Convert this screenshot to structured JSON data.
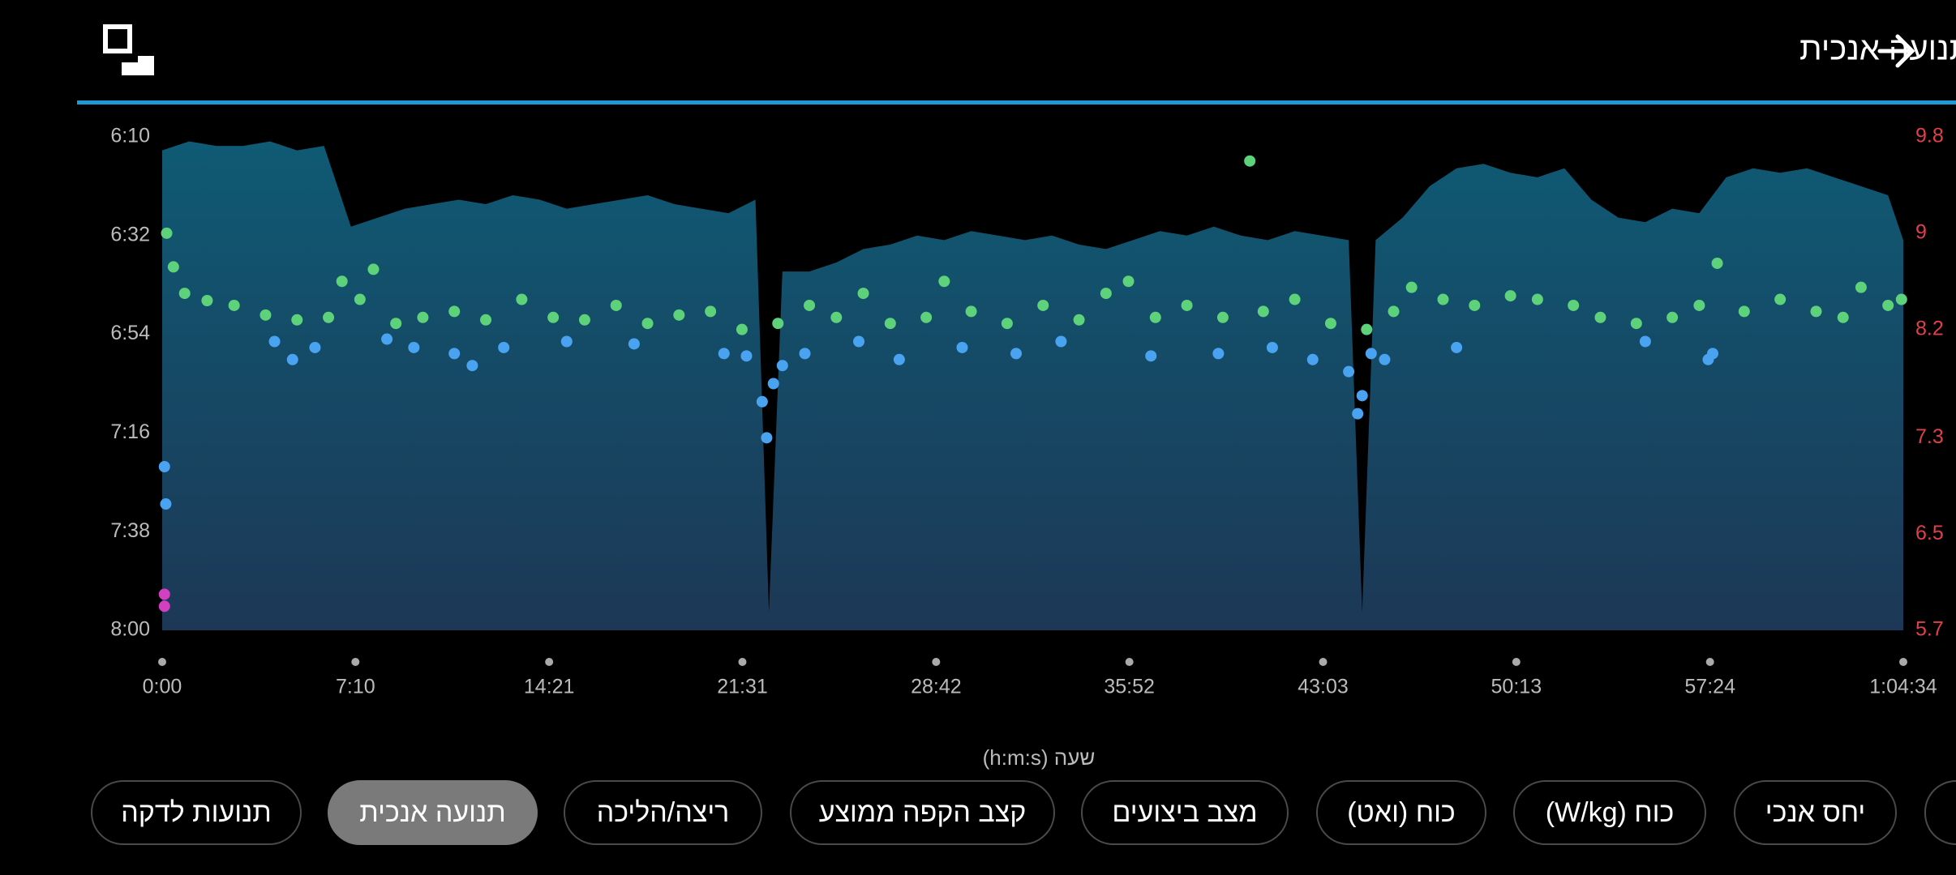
{
  "header": {
    "title": "קצב & תנועה אנכית"
  },
  "chart_data": {
    "type": "area",
    "xlabel": "שעה (h:m:s)",
    "xlim": [
      0,
      3874
    ],
    "xticks": [
      {
        "value": 0,
        "label": "0:00"
      },
      {
        "value": 430,
        "label": "7:10"
      },
      {
        "value": 861,
        "label": "14:21"
      },
      {
        "value": 1291,
        "label": "21:31"
      },
      {
        "value": 1722,
        "label": "28:42"
      },
      {
        "value": 2152,
        "label": "35:52"
      },
      {
        "value": 2583,
        "label": "43:03"
      },
      {
        "value": 3013,
        "label": "50:13"
      },
      {
        "value": 3444,
        "label": "57:24"
      },
      {
        "value": 3874,
        "label": "1:04:34"
      }
    ],
    "ylim": [
      480,
      370
    ],
    "yticks": [
      {
        "value": 370,
        "label": "6:10"
      },
      {
        "value": 392,
        "label": "6:32"
      },
      {
        "value": 414,
        "label": "6:54"
      },
      {
        "value": 436,
        "label": "7:16"
      },
      {
        "value": 458,
        "label": "7:38"
      },
      {
        "value": 480,
        "label": "8:00"
      }
    ],
    "y2lim": [
      5.7,
      9.8
    ],
    "y2ticks": [
      5.7,
      6.5,
      7.3,
      8.2,
      9.0,
      9.8
    ],
    "y2_color": "#e0404a",
    "series": [
      {
        "type": "area",
        "color": "#0f5a74",
        "x": [
          0,
          60,
          120,
          180,
          240,
          300,
          360,
          420,
          480,
          540,
          600,
          660,
          720,
          780,
          840,
          900,
          960,
          1020,
          1080,
          1140,
          1200,
          1260,
          1320,
          1350,
          1380,
          1440,
          1500,
          1560,
          1620,
          1680,
          1740,
          1800,
          1860,
          1920,
          1980,
          2040,
          2100,
          2160,
          2220,
          2280,
          2340,
          2400,
          2460,
          2520,
          2580,
          2640,
          2670,
          2700,
          2760,
          2820,
          2880,
          2940,
          3000,
          3060,
          3120,
          3180,
          3240,
          3300,
          3360,
          3420,
          3480,
          3540,
          3600,
          3660,
          3720,
          3780,
          3840,
          3874
        ],
        "values": [
          373,
          371,
          372,
          372,
          371,
          373,
          372,
          390,
          388,
          386,
          385,
          384,
          385,
          383,
          384,
          386,
          385,
          384,
          383,
          385,
          386,
          387,
          384,
          476,
          400,
          400,
          398,
          395,
          394,
          392,
          393,
          391,
          392,
          393,
          392,
          394,
          395,
          393,
          391,
          392,
          390,
          392,
          393,
          391,
          392,
          393,
          476,
          393,
          388,
          381,
          377,
          376,
          378,
          379,
          377,
          384,
          388,
          389,
          386,
          387,
          379,
          377,
          378,
          377,
          379,
          381,
          383,
          393
        ]
      },
      {
        "type": "scatter",
        "axis": "y2",
        "color": "#5ed27a",
        "x": [
          10,
          25,
          50,
          100,
          160,
          230,
          300,
          370,
          400,
          440,
          470,
          520,
          580,
          650,
          720,
          800,
          870,
          940,
          1010,
          1080,
          1150,
          1220,
          1290,
          1370,
          1440,
          1500,
          1560,
          1620,
          1700,
          1740,
          1800,
          1880,
          1960,
          2040,
          2100,
          2150,
          2210,
          2280,
          2360,
          2420,
          2450,
          2520,
          2600,
          2680,
          2740,
          2780,
          2850,
          2920,
          3000,
          3060,
          3140,
          3200,
          3280,
          3360,
          3420,
          3460,
          3520,
          3600,
          3680,
          3740,
          3780,
          3840,
          3870
        ],
        "values": [
          9.0,
          8.72,
          8.5,
          8.44,
          8.4,
          8.32,
          8.28,
          8.3,
          8.6,
          8.45,
          8.7,
          8.25,
          8.3,
          8.35,
          8.28,
          8.45,
          8.3,
          8.28,
          8.4,
          8.25,
          8.32,
          8.35,
          8.2,
          8.25,
          8.4,
          8.3,
          8.5,
          8.25,
          8.3,
          8.6,
          8.35,
          8.25,
          8.4,
          8.28,
          8.5,
          8.6,
          8.3,
          8.4,
          8.3,
          9.6,
          8.35,
          8.45,
          8.25,
          8.2,
          8.35,
          8.55,
          8.45,
          8.4,
          8.48,
          8.45,
          8.4,
          8.3,
          8.25,
          8.3,
          8.4,
          8.75,
          8.35,
          8.45,
          8.35,
          8.3,
          8.55,
          8.4,
          8.45
        ]
      },
      {
        "type": "scatter",
        "axis": "y2",
        "color": "#4aa3f0",
        "x": [
          5,
          8,
          250,
          290,
          340,
          500,
          560,
          650,
          690,
          760,
          900,
          1050,
          1250,
          1300,
          1335,
          1345,
          1360,
          1380,
          1430,
          1550,
          1640,
          1780,
          1900,
          2000,
          2200,
          2350,
          2470,
          2560,
          2640,
          2660,
          2670,
          2690,
          2720,
          2880,
          3300,
          3440,
          3450
        ],
        "values": [
          7.06,
          6.75,
          8.1,
          7.95,
          8.05,
          8.12,
          8.05,
          8.0,
          7.9,
          8.05,
          8.1,
          8.08,
          8.0,
          7.98,
          7.6,
          7.3,
          7.75,
          7.9,
          8.0,
          8.1,
          7.95,
          8.05,
          8.0,
          8.1,
          7.98,
          8.0,
          8.05,
          7.95,
          7.85,
          7.5,
          7.65,
          8.0,
          7.95,
          8.05,
          8.1,
          7.95,
          8.0
        ]
      },
      {
        "type": "scatter",
        "axis": "y2",
        "color": "#d040c0",
        "x": [
          5,
          5
        ],
        "values": [
          6.0,
          5.9
        ]
      }
    ]
  },
  "tabs": [
    {
      "label": "תנועות לדקה",
      "selected": false
    },
    {
      "label": "תנועה אנכית",
      "selected": true
    },
    {
      "label": "ריצה/הליכה",
      "selected": false
    },
    {
      "label": "קצב הקפה ממוצע",
      "selected": false
    },
    {
      "label": "מצב ביצועים",
      "selected": false
    },
    {
      "label": "כוח (ואט)",
      "selected": false
    },
    {
      "label": "כוח (W/kg)",
      "selected": false
    },
    {
      "label": "יחס אנכי",
      "selected": false
    }
  ]
}
